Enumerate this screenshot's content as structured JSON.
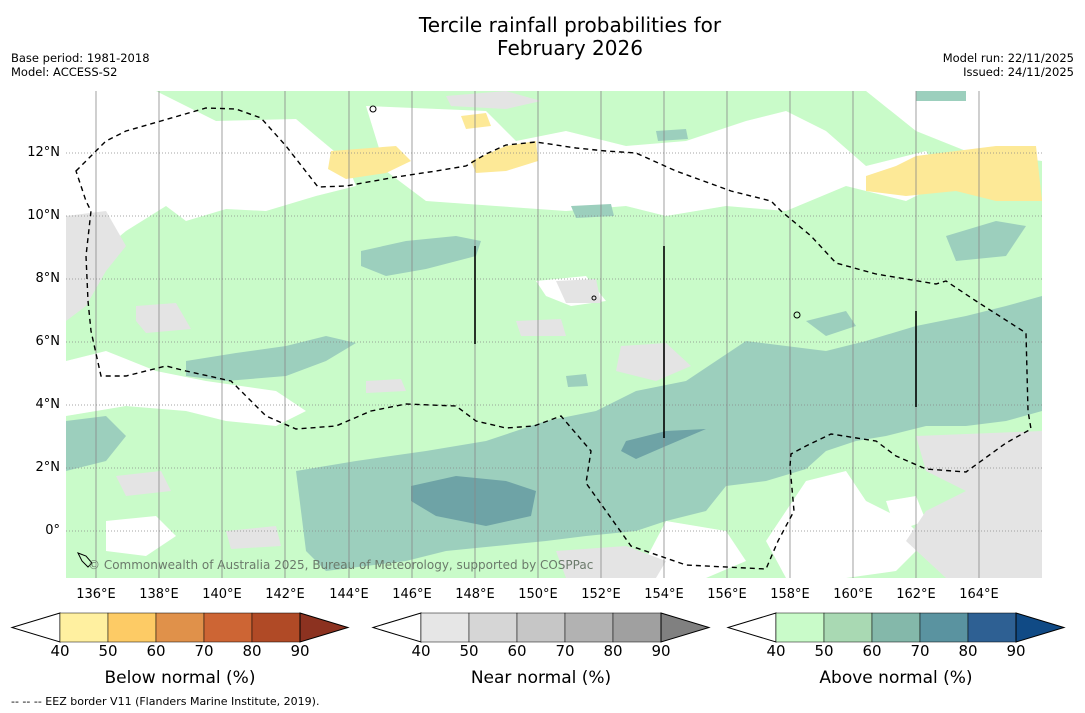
{
  "title_line1": "Tercile rainfall probabilities for",
  "title_line2": "February 2026",
  "base_period": "Base period: 1981-2018",
  "model": "Model: ACCESS-S2",
  "model_run": "Model run: 22/11/2025",
  "issued": "Issued: 24/11/2025",
  "copyright": "© Commonwealth of Australia 2025, Bureau of Meteorology, supported by COSPPac",
  "lat_labels": [
    "12°N",
    "10°N",
    "8°N",
    "6°N",
    "4°N",
    "2°N",
    "0°"
  ],
  "lon_labels": [
    "136°E",
    "138°E",
    "140°E",
    "142°E",
    "144°E",
    "146°E",
    "148°E",
    "150°E",
    "152°E",
    "154°E",
    "156°E",
    "158°E",
    "160°E",
    "162°E",
    "164°E"
  ],
  "colorbars": [
    {
      "name": "below",
      "title": "Below normal (%)",
      "ticks": [
        "40",
        "50",
        "60",
        "70",
        "80",
        "90"
      ],
      "colors": [
        "#fff0a0",
        "#fdcb65",
        "#e0914a",
        "#cd6534",
        "#b04a26",
        "#8c3220"
      ]
    },
    {
      "name": "near",
      "title": "Near normal (%)",
      "ticks": [
        "40",
        "50",
        "60",
        "70",
        "80",
        "90"
      ],
      "colors": [
        "#e6e6e6",
        "#d6d6d6",
        "#c6c6c6",
        "#b2b2b2",
        "#a0a0a0",
        "#808080"
      ]
    },
    {
      "name": "above",
      "title": "Above normal (%)",
      "ticks": [
        "40",
        "50",
        "60",
        "70",
        "80",
        "90"
      ],
      "colors": [
        "#c9fbc9",
        "#a9d9b3",
        "#84b8aa",
        "#5a93a0",
        "#2e6093",
        "#104a85"
      ]
    }
  ],
  "colors": {
    "above_40": "#c9fbc9",
    "above_50": "#9ccfbd",
    "above_60": "#6ea3a6",
    "near_40": "#e4e4e4",
    "below_40": "#fde997",
    "grid": "#888888"
  },
  "footnote": "--  --  -- EEZ border V11 (Flanders Marine Institute, 2019)."
}
